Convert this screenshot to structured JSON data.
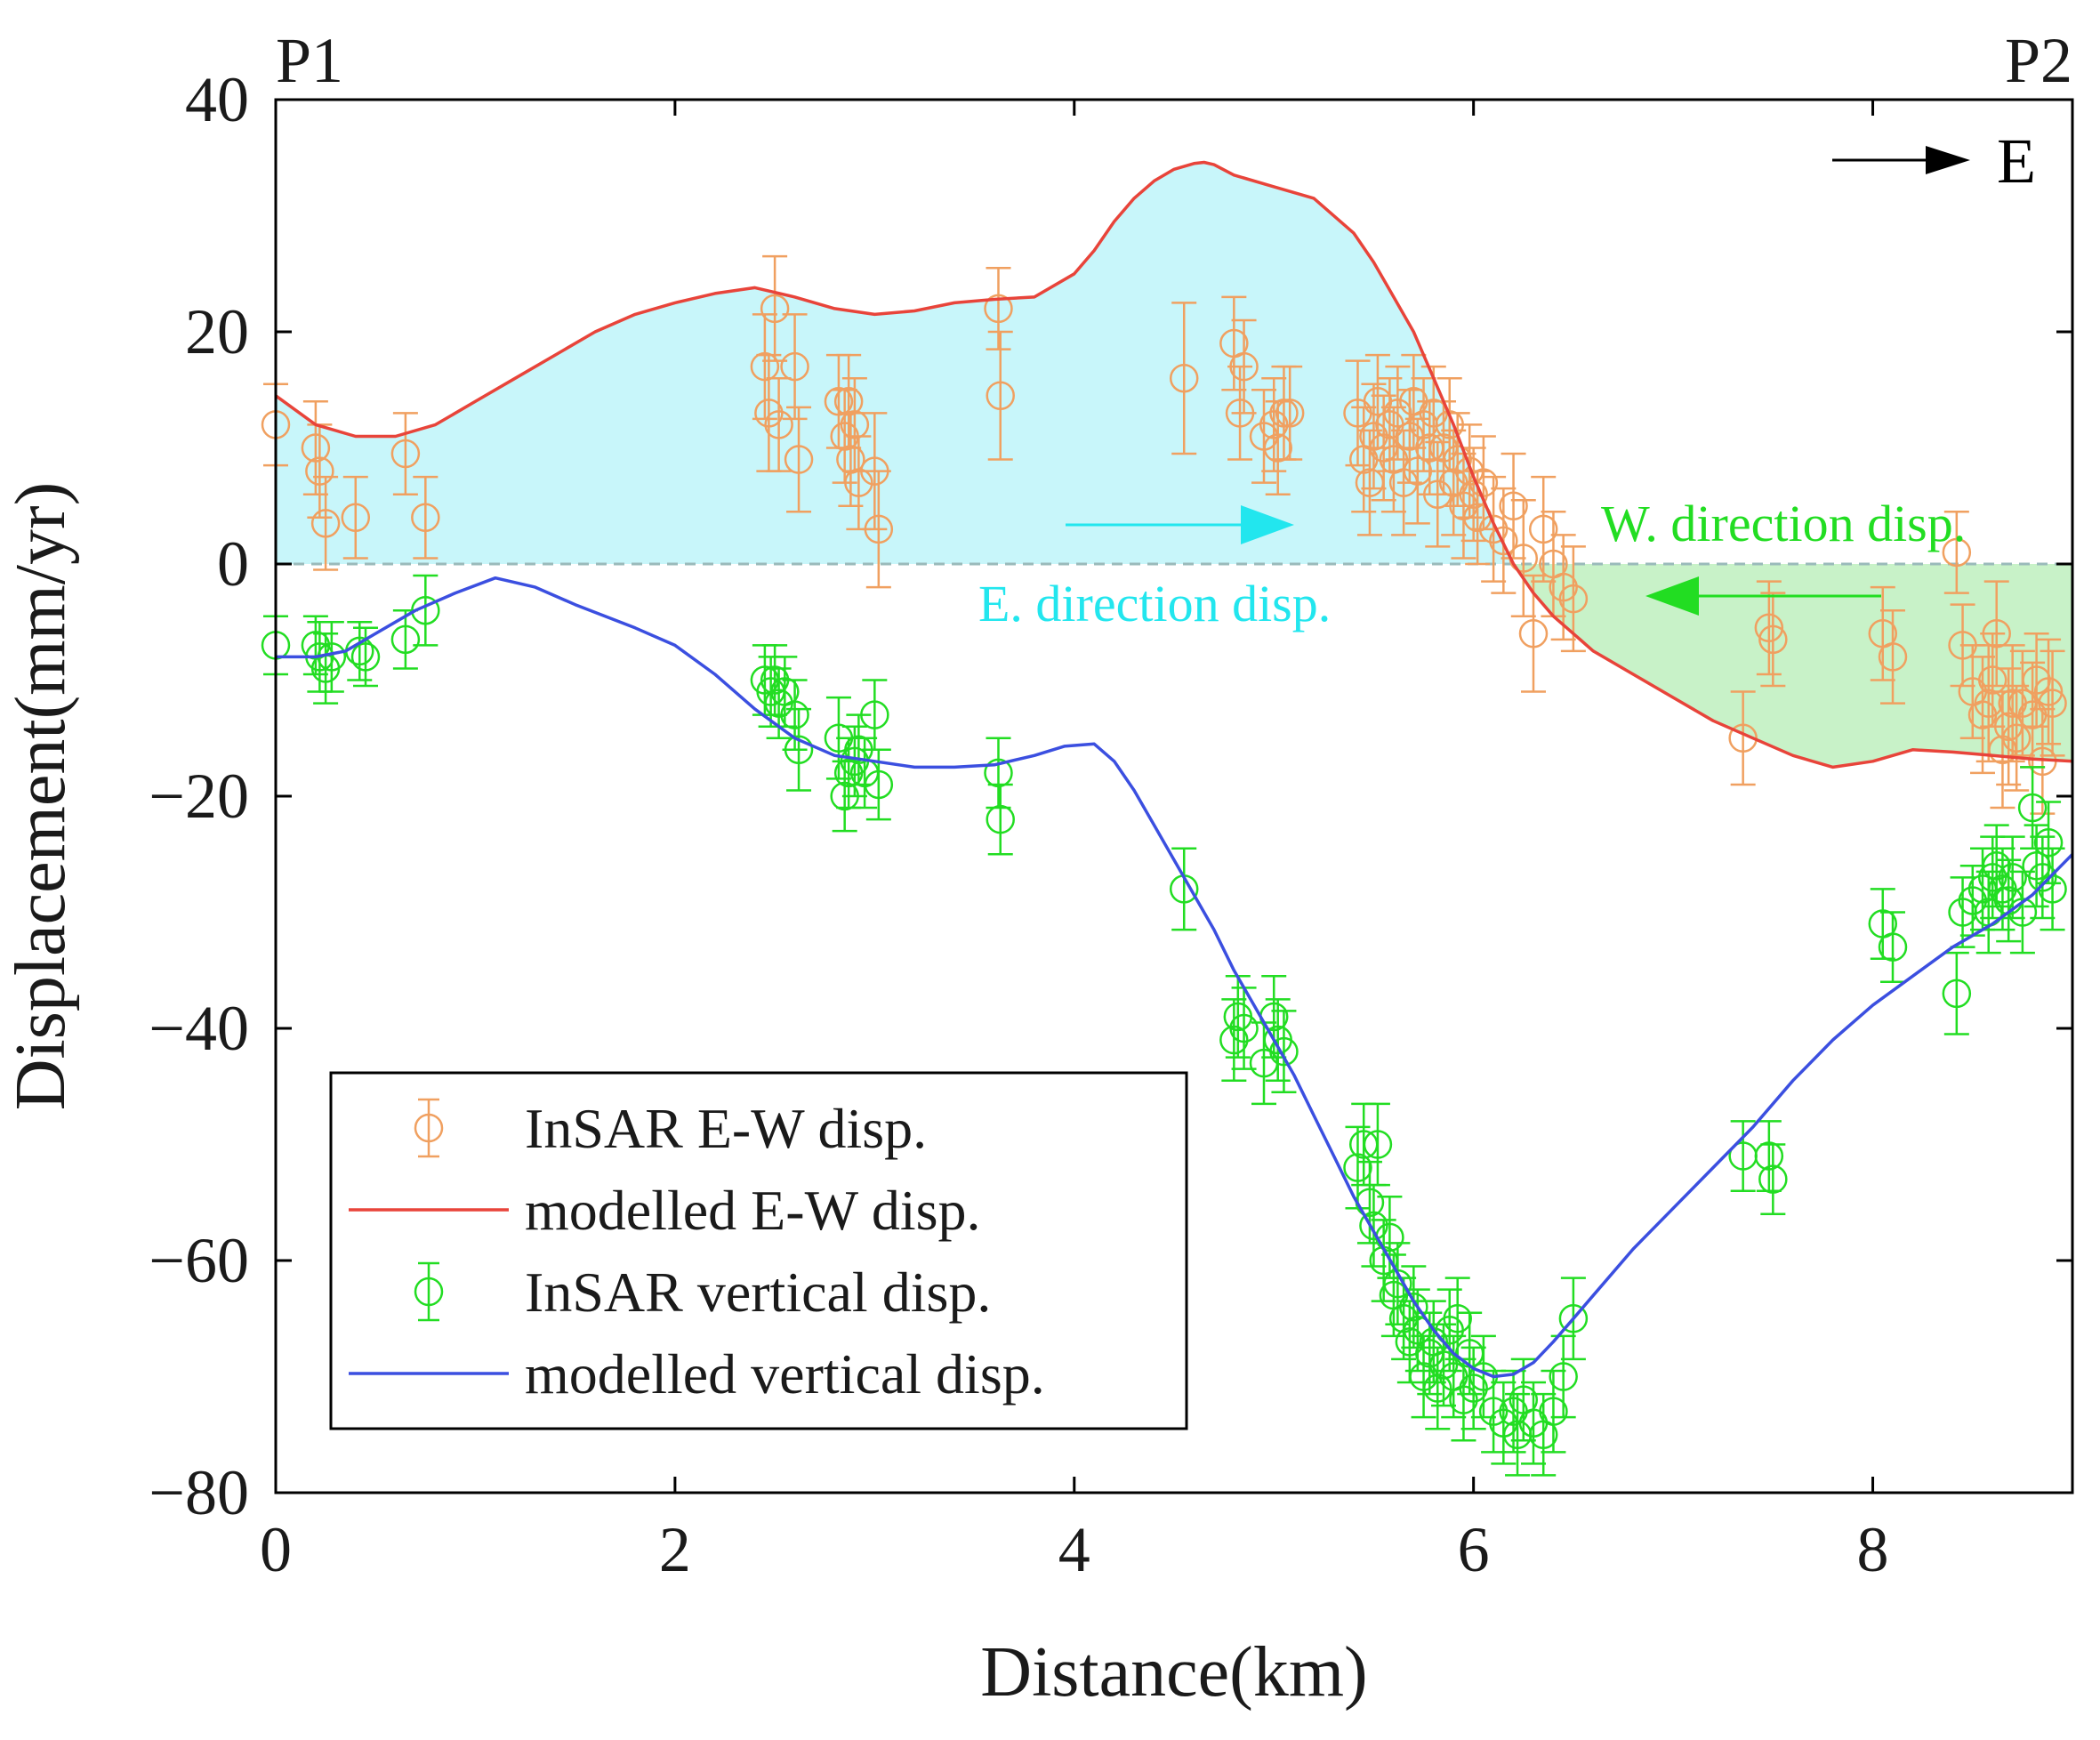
{
  "chart_data": {
    "type": "line",
    "xlabel": "Distance(km)",
    "ylabel": "Displacement(mm/yr)",
    "xlim": [
      0,
      9
    ],
    "ylim": [
      -80,
      40
    ],
    "xticks": [
      0,
      2,
      4,
      6,
      8
    ],
    "yticks": [
      40,
      20,
      0,
      -20,
      -40,
      -60,
      -80
    ],
    "xtick_labels": [
      "0",
      "2",
      "4",
      "6",
      "8"
    ],
    "ytick_labels": [
      "40",
      "20",
      "0",
      "−20",
      "−40",
      "−60",
      "−80"
    ],
    "grid": false,
    "legend_position": "bottom-left",
    "endpoint_labels": {
      "left": "P1",
      "right": "P2"
    },
    "annotations": {
      "east_marker": "E",
      "e_direction": "E. direction disp.",
      "w_direction": "W. direction disp."
    },
    "colors": {
      "ew_points": "#f0a060",
      "ew_model": "#e8443a",
      "vertical_points": "#22dd22",
      "vertical_model": "#3b4fe0",
      "east_fill": "#c8f6fa",
      "west_fill": "#c8f2c8",
      "east_arrow": "#22e6ee",
      "west_arrow": "#22dd22",
      "zero_line": "#9ababa"
    },
    "series": [
      {
        "name": "InSAR E-W disp.",
        "kind": "errorbar",
        "x": [
          0.0,
          0.2,
          0.22,
          0.25,
          0.4,
          0.65,
          0.75,
          2.45,
          2.47,
          2.5,
          2.52,
          2.6,
          2.62,
          2.82,
          2.85,
          2.87,
          2.88,
          2.9,
          2.92,
          3.0,
          3.02,
          3.62,
          3.63,
          4.55,
          4.8,
          4.83,
          4.85,
          4.95,
          5.0,
          5.02,
          5.05,
          5.08,
          5.42,
          5.45,
          5.48,
          5.5,
          5.52,
          5.55,
          5.58,
          5.6,
          5.62,
          5.65,
          5.68,
          5.7,
          5.72,
          5.75,
          5.78,
          5.8,
          5.82,
          5.85,
          5.88,
          5.9,
          5.92,
          5.95,
          5.98,
          6.0,
          6.02,
          6.05,
          6.1,
          6.15,
          6.2,
          6.25,
          6.3,
          6.35,
          6.4,
          6.45,
          6.5,
          7.35,
          7.48,
          7.5,
          8.05,
          8.1,
          8.42,
          8.45,
          8.5,
          8.55,
          8.58,
          8.6,
          8.62,
          8.65,
          8.68,
          8.7,
          8.72,
          8.75,
          8.8,
          8.82,
          8.85,
          8.88,
          8.9
        ],
        "y": [
          12,
          10,
          8,
          3.5,
          4,
          9.5,
          4,
          17,
          13,
          22,
          12,
          17,
          9,
          14,
          11,
          14,
          9,
          12,
          7,
          8,
          3,
          22,
          14.5,
          16,
          19,
          13,
          17,
          11,
          12,
          10,
          13,
          13,
          13,
          9,
          7,
          11,
          14,
          10,
          12,
          9,
          13,
          7,
          11,
          14,
          8,
          12,
          10,
          13,
          6,
          10,
          12,
          7,
          9,
          5,
          8,
          6,
          4,
          7,
          3,
          2,
          5,
          0.5,
          -6,
          3,
          0,
          -2,
          -3,
          -15,
          -5.5,
          -6.5,
          -6,
          -8,
          1,
          -7,
          -11,
          -13,
          -12,
          -10,
          -6,
          -16,
          -14,
          -12,
          -15,
          -12,
          -13,
          -10,
          -17,
          -11,
          -12
        ],
        "err": [
          3.5,
          4,
          4,
          4,
          3.5,
          3.5,
          3.5,
          4.5,
          5,
          4.5,
          4,
          4.5,
          4.5,
          4,
          4,
          4,
          4,
          4,
          4,
          5,
          5,
          3.5,
          5.5,
          6.5,
          4,
          4,
          4,
          4,
          4,
          4,
          4,
          4,
          4.5,
          4.5,
          4.5,
          4.5,
          4,
          4.5,
          4,
          4.5,
          4,
          4.5,
          4,
          4,
          4.5,
          4,
          4,
          4,
          4.5,
          4,
          4,
          4.5,
          4,
          4.5,
          4,
          4,
          4,
          4,
          4.5,
          4.5,
          4.5,
          5,
          5,
          4.5,
          4.5,
          4.5,
          4.5,
          4,
          4,
          4,
          4,
          4,
          3.5,
          3.5,
          4,
          5,
          5,
          4,
          4.5,
          5,
          5,
          5,
          4.5,
          4.5,
          4.5,
          4,
          4.5,
          4.5,
          4.5
        ]
      },
      {
        "name": "modelled E-W disp.",
        "kind": "line",
        "x": [
          0,
          0.2,
          0.4,
          0.6,
          0.8,
          1.0,
          1.2,
          1.4,
          1.6,
          1.8,
          2.0,
          2.2,
          2.4,
          2.6,
          2.8,
          3.0,
          3.2,
          3.4,
          3.6,
          3.8,
          4.0,
          4.1,
          4.2,
          4.3,
          4.4,
          4.5,
          4.6,
          4.65,
          4.7,
          4.8,
          5.0,
          5.2,
          5.4,
          5.5,
          5.6,
          5.7,
          5.8,
          5.9,
          6.0,
          6.1,
          6.2,
          6.3,
          6.4,
          6.5,
          6.6,
          6.8,
          7.0,
          7.2,
          7.4,
          7.6,
          7.8,
          8.0,
          8.2,
          8.4,
          8.6,
          8.8,
          9.0
        ],
        "y": [
          14.5,
          12,
          11,
          11,
          12,
          14,
          16,
          18,
          20,
          21.5,
          22.5,
          23.3,
          23.8,
          23,
          22,
          21.5,
          21.8,
          22.5,
          22.8,
          23,
          25,
          27,
          29.5,
          31.5,
          33,
          34,
          34.5,
          34.6,
          34.4,
          33.5,
          32.5,
          31.5,
          28.5,
          26,
          23,
          20,
          16,
          12,
          7.5,
          3.5,
          0,
          -2.5,
          -4.5,
          -6,
          -7.5,
          -9.5,
          -11.5,
          -13.5,
          -15,
          -16.5,
          -17.5,
          -17,
          -16,
          -16.2,
          -16.5,
          -16.8,
          -17
        ]
      },
      {
        "name": "InSAR vertical disp.",
        "kind": "errorbar",
        "x": [
          0.0,
          0.2,
          0.22,
          0.25,
          0.28,
          0.42,
          0.45,
          0.65,
          0.75,
          2.45,
          2.48,
          2.5,
          2.52,
          2.55,
          2.6,
          2.62,
          2.82,
          2.85,
          2.87,
          2.9,
          2.92,
          2.95,
          3.0,
          3.02,
          3.62,
          3.63,
          4.55,
          4.8,
          4.82,
          4.85,
          4.95,
          5.0,
          5.02,
          5.05,
          5.42,
          5.45,
          5.48,
          5.5,
          5.52,
          5.55,
          5.58,
          5.6,
          5.62,
          5.65,
          5.68,
          5.7,
          5.72,
          5.75,
          5.78,
          5.8,
          5.82,
          5.85,
          5.88,
          5.9,
          5.92,
          5.95,
          5.98,
          6.0,
          6.05,
          6.1,
          6.15,
          6.2,
          6.22,
          6.25,
          6.3,
          6.35,
          6.4,
          6.45,
          6.5,
          7.35,
          7.48,
          7.5,
          8.05,
          8.1,
          8.42,
          8.45,
          8.5,
          8.55,
          8.58,
          8.6,
          8.62,
          8.65,
          8.68,
          8.7,
          8.75,
          8.8,
          8.82,
          8.85,
          8.88,
          8.9
        ],
        "y": [
          -7,
          -7,
          -8,
          -9,
          -8,
          -7.5,
          -8,
          -6.5,
          -4,
          -10,
          -11,
          -10,
          -12,
          -11,
          -13,
          -16,
          -15,
          -20,
          -18,
          -17,
          -16,
          -18,
          -13,
          -19,
          -18,
          -22,
          -28,
          -41,
          -39,
          -40,
          -43,
          -39,
          -41,
          -42,
          -52,
          -50,
          -55,
          -57,
          -50,
          -60,
          -58,
          -63,
          -62,
          -65,
          -67,
          -64,
          -66,
          -70,
          -68,
          -67,
          -71,
          -69,
          -66,
          -70,
          -65,
          -72,
          -68,
          -71,
          -70,
          -73,
          -74,
          -73,
          -75,
          -72,
          -74,
          -75,
          -73,
          -70,
          -65,
          -51,
          -51,
          -53,
          -31,
          -33,
          -37,
          -30,
          -29,
          -28,
          -30,
          -27,
          -26,
          -28,
          -29,
          -27,
          -30,
          -21,
          -26,
          -27,
          -24,
          -28
        ],
        "err": [
          2.5,
          2.5,
          3,
          3,
          3,
          2.5,
          2.5,
          2.5,
          3,
          3,
          3,
          3,
          3,
          3,
          3,
          3.5,
          3.5,
          3,
          3,
          3,
          3,
          3,
          3,
          3,
          3,
          3,
          3.5,
          3.5,
          3.5,
          3.5,
          3.5,
          3.5,
          3.5,
          3.5,
          3.5,
          3.5,
          3.5,
          3.5,
          3.5,
          3.5,
          3.5,
          3.5,
          3.5,
          3.5,
          3.5,
          3.5,
          3.5,
          3.5,
          3.5,
          3.5,
          3.5,
          3.5,
          3.5,
          3.5,
          3.5,
          3.5,
          3.5,
          3.5,
          3.5,
          3.5,
          3.5,
          3.5,
          3.5,
          3.5,
          3.5,
          3.5,
          3.5,
          3.5,
          3.5,
          3,
          3,
          3,
          3,
          3,
          3.5,
          3,
          3,
          3.5,
          3.5,
          3.5,
          3.5,
          3.5,
          3.5,
          3.5,
          3.5,
          3.5,
          3.5,
          3.5,
          3.5,
          3.5
        ]
      },
      {
        "name": "modelled vertical disp.",
        "kind": "line",
        "x": [
          0,
          0.2,
          0.35,
          0.5,
          0.7,
          0.9,
          1.1,
          1.3,
          1.5,
          1.8,
          2.0,
          2.2,
          2.4,
          2.6,
          2.8,
          3.0,
          3.2,
          3.4,
          3.6,
          3.8,
          3.95,
          4.1,
          4.2,
          4.3,
          4.4,
          4.5,
          4.6,
          4.7,
          4.8,
          4.9,
          5.0,
          5.1,
          5.2,
          5.3,
          5.4,
          5.5,
          5.6,
          5.7,
          5.8,
          5.9,
          6.0,
          6.1,
          6.2,
          6.3,
          6.4,
          6.5,
          6.6,
          6.8,
          7.0,
          7.2,
          7.4,
          7.6,
          7.8,
          8.0,
          8.2,
          8.4,
          8.6,
          8.8,
          9.0
        ],
        "y": [
          -8,
          -8,
          -7.5,
          -6,
          -4,
          -2.5,
          -1.2,
          -2,
          -3.5,
          -5.5,
          -7,
          -9.5,
          -12.5,
          -15,
          -16.5,
          -17,
          -17.5,
          -17.5,
          -17.3,
          -16.5,
          -15.7,
          -15.5,
          -17,
          -19.5,
          -22.5,
          -25.5,
          -28.5,
          -31.5,
          -35,
          -38,
          -41,
          -44,
          -47.5,
          -51,
          -54.5,
          -57.5,
          -60.5,
          -63.5,
          -66,
          -68,
          -69.3,
          -70,
          -69.8,
          -68.8,
          -67,
          -65,
          -63,
          -59,
          -55.5,
          -52,
          -48.5,
          -44.5,
          -41,
          -38,
          -35.5,
          -33,
          -31,
          -28.5,
          -25
        ]
      }
    ]
  }
}
